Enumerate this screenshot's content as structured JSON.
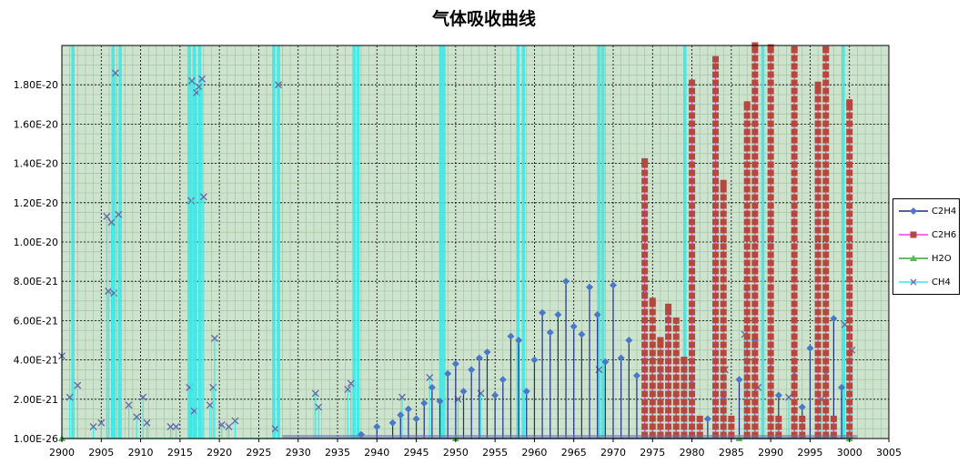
{
  "chart_data": {
    "type": "line",
    "title": "气体吸收曲线",
    "xlabel": "",
    "ylabel": "",
    "xlim": [
      2900,
      3005
    ],
    "ylim": [
      1e-26,
      2e-20
    ],
    "x_ticks": [
      2900,
      2905,
      2910,
      2915,
      2920,
      2925,
      2930,
      2935,
      2940,
      2945,
      2950,
      2955,
      2960,
      2965,
      2970,
      2975,
      2980,
      2985,
      2990,
      2995,
      3000,
      3005
    ],
    "y_ticks": [
      1e-26,
      2e-21,
      4e-21,
      6e-21,
      8e-21,
      1e-20,
      1.2e-20,
      1.4e-20,
      1.6e-20,
      1.8e-20
    ],
    "y_tick_labels": [
      "1.00E-26",
      "2.00E-21",
      "4.00E-21",
      "6.00E-21",
      "8.00E-21",
      "1.00E-20",
      "1.20E-20",
      "1.40E-20",
      "1.60E-20",
      "1.80E-20"
    ],
    "grid": true,
    "legend_position": "right",
    "colors": {
      "plot_bg": "#cde3cd",
      "minor_grid": "#9fbf9f",
      "major_grid": "#000000",
      "C2H4": "#1c2f8c",
      "C2H4_marker": "#4a78c8",
      "C2H6": "#ff33ff",
      "C2H6_marker": "#b5483e",
      "H2O": "#3aa33a",
      "CH4": "#3de8e8",
      "CH4_marker": "#6a6aa8"
    },
    "series": [
      {
        "name": "C2H4",
        "marker": "diamond",
        "points": [
          [
            2938,
            2e-22
          ],
          [
            2940,
            6e-22
          ],
          [
            2942,
            8e-22
          ],
          [
            2943,
            1.2e-21
          ],
          [
            2944,
            1.5e-21
          ],
          [
            2945,
            1e-21
          ],
          [
            2946,
            1.8e-21
          ],
          [
            2947,
            2.6e-21
          ],
          [
            2948,
            1.9e-21
          ],
          [
            2949,
            3.3e-21
          ],
          [
            2950,
            3.8e-21
          ],
          [
            2951,
            2.4e-21
          ],
          [
            2952,
            3.5e-21
          ],
          [
            2953,
            4.1e-21
          ],
          [
            2954,
            4.4e-21
          ],
          [
            2955,
            2.2e-21
          ],
          [
            2956,
            3e-21
          ],
          [
            2957,
            5.2e-21
          ],
          [
            2958,
            5e-21
          ],
          [
            2959,
            2.4e-21
          ],
          [
            2960,
            4e-21
          ],
          [
            2961,
            6.4e-21
          ],
          [
            2962,
            5.4e-21
          ],
          [
            2963,
            6.3e-21
          ],
          [
            2964,
            8e-21
          ],
          [
            2965,
            5.7e-21
          ],
          [
            2966,
            5.3e-21
          ],
          [
            2967,
            7.7e-21
          ],
          [
            2968,
            6.3e-21
          ],
          [
            2969,
            3.9e-21
          ],
          [
            2970,
            7.8e-21
          ],
          [
            2971,
            4.1e-21
          ],
          [
            2972,
            5e-21
          ],
          [
            2973,
            3.2e-21
          ],
          [
            2974,
            7.4e-21
          ],
          [
            2975,
            4e-21
          ],
          [
            2976,
            3.2e-21
          ],
          [
            2977,
            6.1e-21
          ],
          [
            2978,
            2.2e-21
          ],
          [
            2980,
            2.8e-21
          ],
          [
            2982,
            1e-21
          ],
          [
            2984,
            2e-21
          ],
          [
            2986,
            3e-21
          ],
          [
            2987,
            7.6e-21
          ],
          [
            2988,
            5e-21
          ],
          [
            2990,
            3.6e-21
          ],
          [
            2991,
            2.2e-21
          ],
          [
            2993,
            3.2e-21
          ],
          [
            2994,
            1.6e-21
          ],
          [
            2995,
            4.6e-21
          ],
          [
            2997,
            3.4e-21
          ],
          [
            2998,
            6.1e-21
          ],
          [
            2999,
            2.6e-21
          ],
          [
            3000,
            6e-21
          ]
        ]
      },
      {
        "name": "C2H6",
        "marker": "square",
        "points": [
          [
            2974,
            1.41e-20
          ],
          [
            2975,
            7e-21
          ],
          [
            2976,
            5e-21
          ],
          [
            2977,
            6.7e-21
          ],
          [
            2978,
            6e-21
          ],
          [
            2979,
            4e-21
          ],
          [
            2980,
            1.81e-20
          ],
          [
            2981,
            1e-21
          ],
          [
            2983,
            1.93e-20
          ],
          [
            2984,
            1.3e-20
          ],
          [
            2985,
            1e-21
          ],
          [
            2987,
            1.7e-20
          ],
          [
            2988,
            2e-20
          ],
          [
            2990,
            1.99e-20
          ],
          [
            2991,
            1e-21
          ],
          [
            2993,
            1.98e-20
          ],
          [
            2994,
            1e-21
          ],
          [
            2996,
            1.8e-20
          ],
          [
            2997,
            1.98e-20
          ],
          [
            2998,
            1e-21
          ],
          [
            3000,
            1.71e-20
          ]
        ]
      },
      {
        "name": "H2O",
        "marker": "triangle",
        "points": [
          [
            2900,
            1e-26
          ],
          [
            2950,
            1e-26
          ],
          [
            2986,
            1e-26
          ],
          [
            3000,
            1e-26
          ]
        ]
      },
      {
        "name": "CH4",
        "marker": "x",
        "points": [
          [
            2900,
            4.2e-21
          ],
          [
            2901,
            2.1e-21
          ],
          [
            2902,
            2.7e-21
          ],
          [
            2904,
            6e-22
          ],
          [
            2905,
            8e-22
          ],
          [
            2905.7,
            1.13e-20
          ],
          [
            2905.9,
            7.5e-21
          ],
          [
            2906.3,
            1.1e-20
          ],
          [
            2906.6,
            7.4e-21
          ],
          [
            2906.8,
            1.86e-20
          ],
          [
            2907.2,
            1.14e-20
          ],
          [
            2908.5,
            1.7e-21
          ],
          [
            2909.5,
            1.1e-21
          ],
          [
            2910.3,
            2.1e-21
          ],
          [
            2910.8,
            8e-22
          ],
          [
            2913.8,
            6e-22
          ],
          [
            2914.5,
            6e-22
          ],
          [
            2916.2,
            2.6e-21
          ],
          [
            2916.4,
            1.21e-20
          ],
          [
            2916.5,
            1.82e-20
          ],
          [
            2916.8,
            1.4e-21
          ],
          [
            2917.1,
            1.76e-20
          ],
          [
            2917.4,
            1.79e-20
          ],
          [
            2917.8,
            1.83e-20
          ],
          [
            2918.0,
            1.23e-20
          ],
          [
            2918.8,
            1.7e-21
          ],
          [
            2919.2,
            2.6e-21
          ],
          [
            2919.4,
            5.1e-21
          ],
          [
            2920.3,
            7e-22
          ],
          [
            2921.2,
            6e-22
          ],
          [
            2922.0,
            9e-22
          ],
          [
            2927.1,
            5e-22
          ],
          [
            2927.5,
            1.8e-20
          ],
          [
            2932.2,
            2.3e-21
          ],
          [
            2932.6,
            1.6e-21
          ],
          [
            2936.3,
            2.5e-21
          ],
          [
            2936.7,
            2.8e-21
          ],
          [
            2943.2,
            2.1e-21
          ],
          [
            2946.7,
            3.1e-21
          ],
          [
            2950.3,
            2e-21
          ],
          [
            2953.2,
            2.3e-21
          ],
          [
            2968.2,
            3.5e-21
          ],
          [
            2984.2,
            3.5e-21
          ],
          [
            2986.7,
            5.3e-21
          ],
          [
            2988.4,
            2.6e-21
          ],
          [
            2992.3,
            2.1e-21
          ],
          [
            2996.4,
            2e-21
          ],
          [
            2999.4,
            5.8e-21
          ],
          [
            3000.3,
            4.5e-21
          ]
        ]
      }
    ],
    "ch4_bands": [
      2901.4,
      2906.5,
      2907.4,
      2916.2,
      2916.8,
      2917.5,
      2926.9,
      2927.5,
      2937.1,
      2937.6,
      2948.1,
      2948.5,
      2957.9,
      2958.6,
      2968.2,
      2968.7,
      2979.1,
      2989.0,
      2999.2
    ]
  }
}
